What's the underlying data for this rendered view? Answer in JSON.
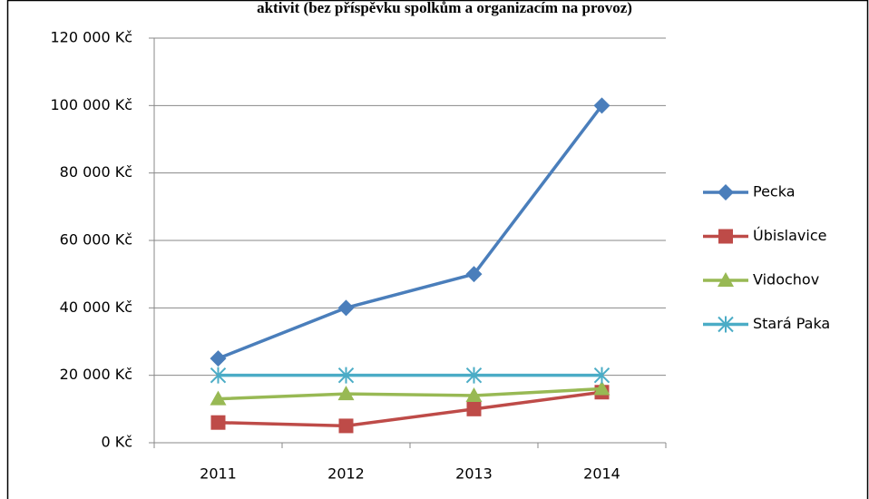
{
  "chart_data": {
    "type": "line",
    "title": "aktivit (bez příspěvku spolkům a organizacím na provoz)",
    "categories": [
      "2011",
      "2012",
      "2013",
      "2014"
    ],
    "series": [
      {
        "name": "Pecka",
        "color": "#4a7ebb",
        "marker": "diamond",
        "values": [
          25000,
          40000,
          50000,
          100000
        ]
      },
      {
        "name": "Úbislavice",
        "color": "#be4b48",
        "marker": "square",
        "values": [
          6000,
          5000,
          10000,
          15000
        ]
      },
      {
        "name": "Vidochov",
        "color": "#98b954",
        "marker": "triangle",
        "values": [
          13000,
          14500,
          14000,
          16000
        ]
      },
      {
        "name": "Stará Paka",
        "color": "#4bacc6",
        "marker": "asterisk",
        "values": [
          20000,
          20000,
          20000,
          20000
        ]
      }
    ],
    "ylim": [
      0,
      120000
    ],
    "yticks": [
      {
        "value": 0,
        "label": "0 Kč"
      },
      {
        "value": 20000,
        "label": "20 000 Kč"
      },
      {
        "value": 40000,
        "label": "40 000 Kč"
      },
      {
        "value": 60000,
        "label": "60 000 Kč"
      },
      {
        "value": 80000,
        "label": "80 000 Kč"
      },
      {
        "value": 100000,
        "label": "100 000 Kč"
      },
      {
        "value": 120000,
        "label": "120 000 Kč"
      }
    ],
    "grid": true,
    "legend": "right"
  }
}
